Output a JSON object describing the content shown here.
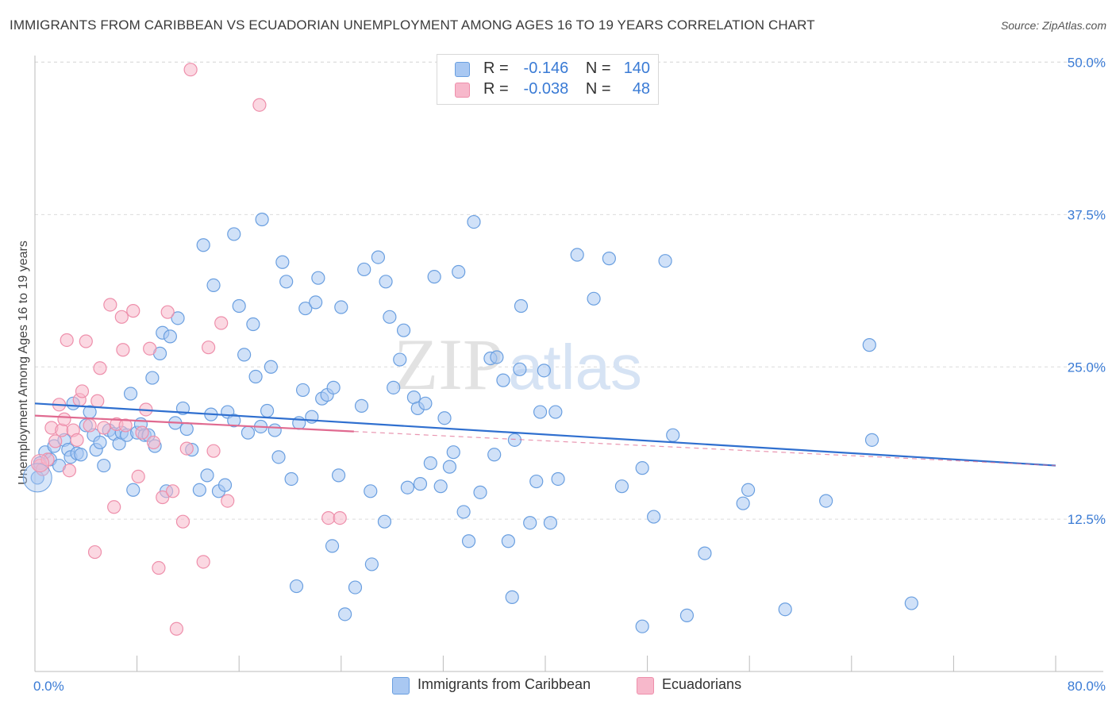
{
  "title": "IMMIGRANTS FROM CARIBBEAN VS ECUADORIAN UNEMPLOYMENT AMONG AGES 16 TO 19 YEARS CORRELATION CHART",
  "source": "Source: ZipAtlas.com",
  "watermark": {
    "part1": "ZIP",
    "part2": "atlas"
  },
  "legend": {
    "r_label": "R =",
    "n_label": "N =",
    "rows": [
      {
        "r": "-0.146",
        "n": "140",
        "color": "#a9c8f2"
      },
      {
        "r": "-0.038",
        "n": "48",
        "color": "#f7b8cb"
      }
    ]
  },
  "chart_data": {
    "type": "scatter",
    "title": "IMMIGRANTS FROM CARIBBEAN VS ECUADORIAN UNEMPLOYMENT AMONG AGES 16 TO 19 YEARS CORRELATION CHART",
    "xlabel": "",
    "ylabel": "Unemployment Among Ages 16 to 19 years",
    "xlim": [
      0,
      80
    ],
    "ylim": [
      0,
      52
    ],
    "x_tick_labels": [
      {
        "value": 0,
        "label": "0.0%"
      },
      {
        "value": 80,
        "label": "80.0%"
      }
    ],
    "y_ticks": [
      {
        "value": 12.5,
        "label": "12.5%"
      },
      {
        "value": 25.0,
        "label": "25.0%"
      },
      {
        "value": 37.5,
        "label": "37.5%"
      },
      {
        "value": 50.0,
        "label": "50.0%"
      }
    ],
    "grid": true,
    "legend_position": "top-center",
    "series": [
      {
        "name": "Immigrants from Caribbean",
        "color": "#6a9fe0",
        "fill": "#a9c8f2",
        "trend": {
          "x": [
            0,
            80
          ],
          "y": [
            22.0,
            16.9
          ],
          "style": "solid",
          "color": "#2f6fcf"
        },
        "points": [
          [
            0.2,
            15.9
          ],
          [
            0.4,
            17.1
          ],
          [
            0.8,
            18.0
          ],
          [
            1.2,
            17.4
          ],
          [
            1.5,
            18.5
          ],
          [
            1.9,
            16.9
          ],
          [
            2.3,
            19.0
          ],
          [
            2.6,
            18.2
          ],
          [
            2.8,
            17.6
          ],
          [
            3.0,
            22.0
          ],
          [
            3.3,
            17.9
          ],
          [
            3.6,
            17.8
          ],
          [
            4.0,
            20.2
          ],
          [
            4.3,
            21.3
          ],
          [
            4.6,
            19.4
          ],
          [
            4.8,
            18.2
          ],
          [
            5.1,
            18.8
          ],
          [
            5.4,
            16.9
          ],
          [
            5.8,
            19.8
          ],
          [
            6.2,
            19.5
          ],
          [
            6.6,
            18.7
          ],
          [
            6.8,
            19.6
          ],
          [
            7.2,
            19.4
          ],
          [
            7.5,
            22.8
          ],
          [
            7.7,
            14.9
          ],
          [
            8.0,
            19.6
          ],
          [
            8.3,
            20.3
          ],
          [
            8.6,
            19.4
          ],
          [
            8.9,
            19.4
          ],
          [
            9.2,
            24.1
          ],
          [
            9.4,
            18.5
          ],
          [
            9.8,
            26.1
          ],
          [
            10.0,
            27.8
          ],
          [
            10.3,
            14.8
          ],
          [
            10.6,
            27.5
          ],
          [
            11.2,
            29.0
          ],
          [
            11.0,
            20.4
          ],
          [
            11.6,
            21.6
          ],
          [
            11.9,
            19.9
          ],
          [
            12.3,
            18.2
          ],
          [
            12.9,
            14.9
          ],
          [
            13.2,
            35.0
          ],
          [
            13.5,
            16.1
          ],
          [
            13.8,
            21.1
          ],
          [
            14.0,
            31.7
          ],
          [
            14.4,
            14.8
          ],
          [
            14.9,
            15.3
          ],
          [
            15.1,
            21.3
          ],
          [
            15.6,
            20.6
          ],
          [
            15.6,
            35.9
          ],
          [
            16.0,
            30.0
          ],
          [
            16.4,
            26.0
          ],
          [
            16.7,
            19.6
          ],
          [
            17.1,
            28.5
          ],
          [
            17.3,
            24.2
          ],
          [
            17.7,
            20.1
          ],
          [
            17.8,
            37.1
          ],
          [
            18.2,
            21.4
          ],
          [
            18.5,
            25.0
          ],
          [
            18.8,
            19.8
          ],
          [
            19.1,
            17.6
          ],
          [
            19.4,
            33.6
          ],
          [
            19.7,
            32.0
          ],
          [
            20.1,
            15.8
          ],
          [
            20.5,
            7.0
          ],
          [
            20.7,
            20.4
          ],
          [
            21.0,
            23.1
          ],
          [
            21.2,
            29.8
          ],
          [
            21.7,
            20.9
          ],
          [
            22.0,
            30.3
          ],
          [
            22.2,
            32.3
          ],
          [
            22.5,
            22.4
          ],
          [
            22.9,
            22.7
          ],
          [
            23.4,
            23.3
          ],
          [
            23.8,
            16.1
          ],
          [
            24.0,
            29.9
          ],
          [
            24.3,
            4.7
          ],
          [
            23.3,
            10.3
          ],
          [
            25.1,
            6.9
          ],
          [
            25.6,
            21.8
          ],
          [
            25.8,
            33.0
          ],
          [
            26.3,
            14.8
          ],
          [
            26.4,
            8.8
          ],
          [
            26.9,
            34.0
          ],
          [
            27.4,
            12.3
          ],
          [
            27.5,
            32.0
          ],
          [
            27.8,
            29.1
          ],
          [
            28.1,
            23.3
          ],
          [
            28.6,
            25.6
          ],
          [
            28.9,
            28.0
          ],
          [
            29.2,
            15.1
          ],
          [
            29.7,
            22.5
          ],
          [
            30.0,
            21.6
          ],
          [
            30.2,
            15.4
          ],
          [
            30.6,
            22.0
          ],
          [
            31.0,
            17.1
          ],
          [
            31.3,
            32.4
          ],
          [
            31.8,
            15.2
          ],
          [
            32.1,
            20.8
          ],
          [
            32.5,
            16.8
          ],
          [
            32.8,
            18.0
          ],
          [
            33.2,
            32.8
          ],
          [
            33.6,
            13.1
          ],
          [
            34.0,
            10.7
          ],
          [
            34.4,
            36.9
          ],
          [
            34.9,
            14.7
          ],
          [
            35.7,
            25.7
          ],
          [
            36.0,
            17.8
          ],
          [
            36.2,
            25.8
          ],
          [
            36.7,
            23.9
          ],
          [
            37.1,
            10.7
          ],
          [
            37.4,
            6.1
          ],
          [
            37.6,
            19.0
          ],
          [
            38.0,
            24.8
          ],
          [
            38.1,
            30.0
          ],
          [
            38.8,
            12.2
          ],
          [
            39.3,
            15.6
          ],
          [
            39.6,
            21.3
          ],
          [
            39.9,
            24.7
          ],
          [
            40.4,
            12.2
          ],
          [
            40.8,
            21.3
          ],
          [
            41.0,
            15.8
          ],
          [
            42.5,
            34.2
          ],
          [
            43.8,
            30.6
          ],
          [
            45.0,
            33.9
          ],
          [
            46.0,
            15.2
          ],
          [
            47.6,
            3.7
          ],
          [
            47.6,
            16.7
          ],
          [
            48.5,
            12.7
          ],
          [
            49.4,
            33.7
          ],
          [
            50.0,
            19.4
          ],
          [
            51.1,
            4.6
          ],
          [
            52.5,
            9.7
          ],
          [
            55.5,
            13.8
          ],
          [
            55.9,
            14.9
          ],
          [
            58.8,
            5.1
          ],
          [
            62.0,
            14.0
          ],
          [
            65.4,
            26.8
          ],
          [
            65.6,
            19.0
          ],
          [
            68.7,
            5.6
          ]
        ]
      },
      {
        "name": "Ecuadorians",
        "color": "#ee8fab",
        "fill": "#f7b8cb",
        "trend": {
          "x": [
            0,
            25
          ],
          "y": [
            21.0,
            19.7
          ],
          "style": "solid",
          "extend_to": 80,
          "extend_y": 16.9,
          "extend_style": "dashed",
          "color": "#e06a90"
        },
        "points": [
          [
            0.4,
            16.9
          ],
          [
            0.6,
            16.6
          ],
          [
            1.0,
            17.4
          ],
          [
            1.3,
            20.0
          ],
          [
            1.6,
            18.9
          ],
          [
            1.9,
            21.9
          ],
          [
            2.1,
            19.8
          ],
          [
            2.3,
            20.7
          ],
          [
            2.5,
            27.2
          ],
          [
            2.7,
            16.5
          ],
          [
            3.0,
            19.8
          ],
          [
            3.3,
            19.0
          ],
          [
            3.5,
            22.3
          ],
          [
            3.7,
            23.0
          ],
          [
            4.0,
            27.1
          ],
          [
            4.3,
            20.2
          ],
          [
            4.7,
            9.8
          ],
          [
            4.9,
            22.2
          ],
          [
            5.1,
            24.9
          ],
          [
            5.4,
            20.0
          ],
          [
            5.9,
            30.1
          ],
          [
            6.2,
            13.5
          ],
          [
            6.4,
            20.3
          ],
          [
            6.8,
            29.1
          ],
          [
            6.9,
            26.4
          ],
          [
            7.1,
            20.2
          ],
          [
            7.7,
            29.6
          ],
          [
            8.1,
            16.0
          ],
          [
            8.4,
            19.6
          ],
          [
            8.7,
            21.5
          ],
          [
            9.0,
            26.5
          ],
          [
            9.3,
            18.8
          ],
          [
            9.7,
            8.5
          ],
          [
            10.0,
            14.3
          ],
          [
            10.4,
            29.5
          ],
          [
            10.8,
            14.8
          ],
          [
            11.1,
            3.5
          ],
          [
            11.6,
            12.3
          ],
          [
            11.9,
            18.3
          ],
          [
            12.2,
            49.4
          ],
          [
            13.2,
            9.0
          ],
          [
            13.6,
            26.6
          ],
          [
            14.0,
            18.1
          ],
          [
            14.6,
            28.6
          ],
          [
            15.1,
            14.0
          ],
          [
            17.6,
            46.5
          ],
          [
            23.0,
            12.6
          ],
          [
            23.9,
            12.6
          ]
        ]
      }
    ]
  },
  "bottom_legend": [
    {
      "label": "Immigrants from Caribbean",
      "color": "#a9c8f2"
    },
    {
      "label": "Ecuadorians",
      "color": "#f7b8cb"
    }
  ]
}
